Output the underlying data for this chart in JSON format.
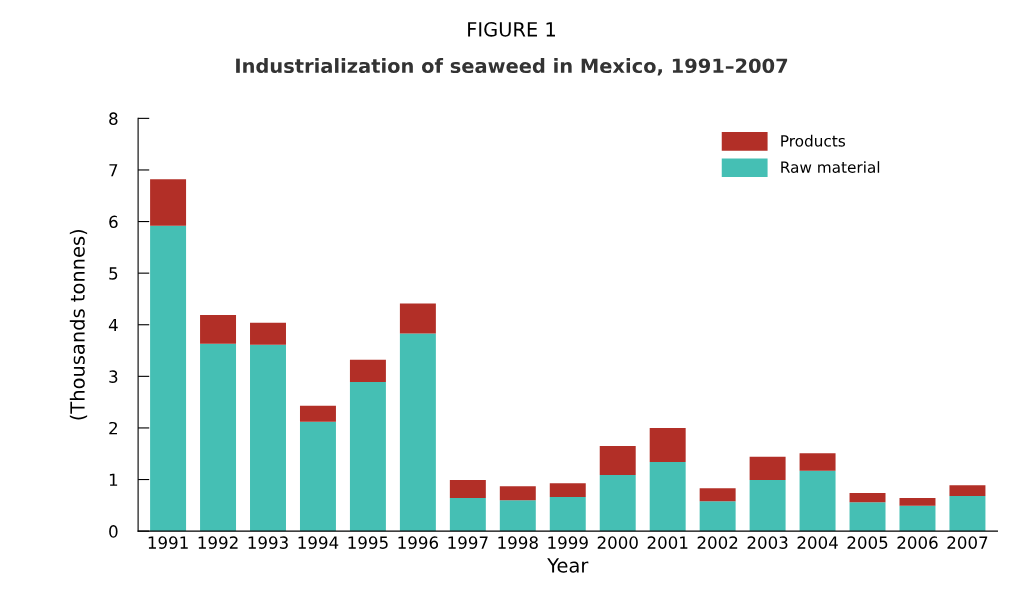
{
  "chart_data": {
    "type": "bar",
    "title": "FIGURE 1",
    "subtitle": "Industrialization of seaweed in Mexico, 1991–2007",
    "xlabel": "Year",
    "ylabel": "(Thousands tonnes)",
    "categories": [
      "1991",
      "1992",
      "1993",
      "1994",
      "1995",
      "1996",
      "1997",
      "1998",
      "1999",
      "2000",
      "2001",
      "2002",
      "2003",
      "2004",
      "2005",
      "2006",
      "2007"
    ],
    "stacked": true,
    "legend": "top right",
    "grid": false,
    "ylim": [
      0,
      8
    ],
    "yticks": [
      0,
      1,
      2,
      3,
      4,
      5,
      6,
      7,
      8
    ],
    "series": [
      {
        "name": "Raw material",
        "color": "#45bfb4",
        "values": [
          5.92,
          3.63,
          3.61,
          2.12,
          2.89,
          3.83,
          0.64,
          0.6,
          0.66,
          1.09,
          1.34,
          0.58,
          0.99,
          1.17,
          0.56,
          0.49,
          0.68
        ]
      },
      {
        "name": "Products",
        "color": "#b22f27",
        "values": [
          0.9,
          0.56,
          0.43,
          0.31,
          0.43,
          0.58,
          0.35,
          0.27,
          0.27,
          0.56,
          0.66,
          0.25,
          0.45,
          0.34,
          0.18,
          0.15,
          0.21
        ]
      }
    ]
  }
}
